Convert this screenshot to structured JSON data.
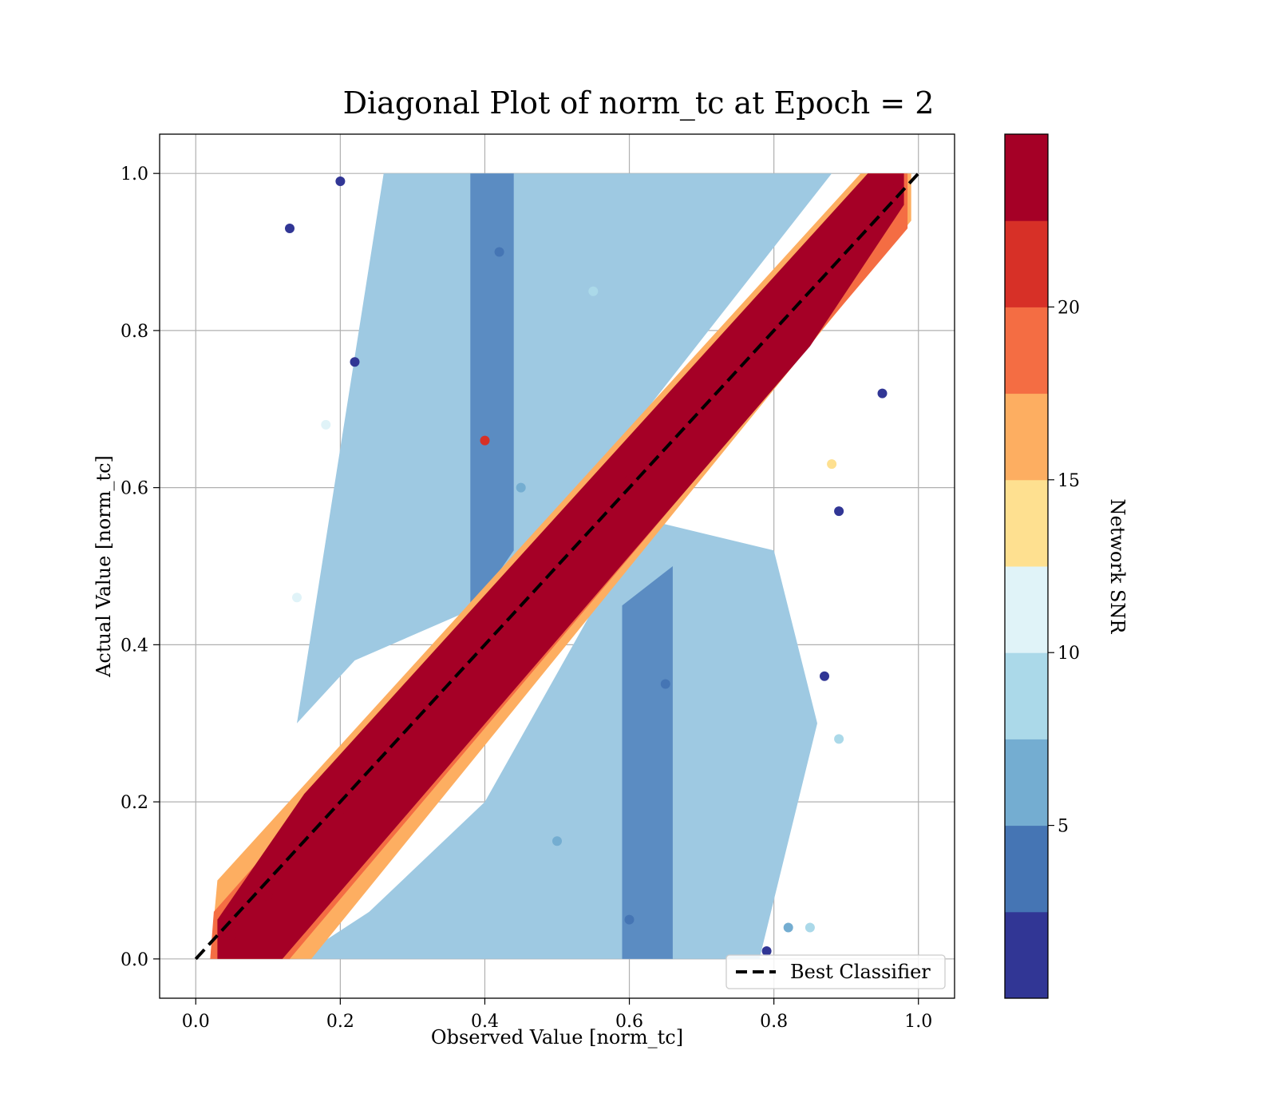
{
  "chart_data": {
    "type": "scatter",
    "title": "Diagonal Plot of norm_tc at Epoch = 2",
    "xlabel": "Observed Value [norm_tc]",
    "ylabel": "Actual Value [norm_tc]",
    "xlim": [
      -0.05,
      1.05
    ],
    "ylim": [
      -0.05,
      1.05
    ],
    "xticks": [
      "0.0",
      "0.2",
      "0.4",
      "0.6",
      "0.8",
      "1.0"
    ],
    "yticks": [
      "0.0",
      "0.2",
      "0.4",
      "0.6",
      "0.8",
      "1.0"
    ],
    "grid": true,
    "legend": {
      "placement": "lower-right",
      "entries": [
        "Best Classifier"
      ]
    },
    "reference_line": {
      "name": "Best Classifier",
      "style": "dashed",
      "color": "#000000",
      "points": [
        [
          0,
          0
        ],
        [
          1,
          1
        ]
      ]
    },
    "colorbar": {
      "label": "Network SNR",
      "range": [
        0,
        25
      ],
      "ticks": [
        "5",
        "10",
        "15",
        "20"
      ],
      "colors": [
        "#313695",
        "#4575b4",
        "#74add1",
        "#abd9e9",
        "#e0f3f8",
        "#fee090",
        "#fdae61",
        "#f46d43",
        "#d73027",
        "#a50026"
      ]
    },
    "series": [
      {
        "description": "points colored by Network SNR; high-SNR points lie along the diagonal, low-SNR points scatter away from it",
        "points": [
          {
            "x": 0.05,
            "y": 0.03,
            "snr": 24
          },
          {
            "x": 0.1,
            "y": 0.08,
            "snr": 24
          },
          {
            "x": 0.2,
            "y": 0.19,
            "snr": 24
          },
          {
            "x": 0.3,
            "y": 0.3,
            "snr": 24
          },
          {
            "x": 0.4,
            "y": 0.41,
            "snr": 24
          },
          {
            "x": 0.5,
            "y": 0.5,
            "snr": 24
          },
          {
            "x": 0.6,
            "y": 0.61,
            "snr": 24
          },
          {
            "x": 0.7,
            "y": 0.7,
            "snr": 24
          },
          {
            "x": 0.8,
            "y": 0.8,
            "snr": 24
          },
          {
            "x": 0.9,
            "y": 0.9,
            "snr": 24
          },
          {
            "x": 0.96,
            "y": 0.99,
            "snr": 24
          },
          {
            "x": 0.42,
            "y": 0.9,
            "snr": 4
          },
          {
            "x": 0.45,
            "y": 0.6,
            "snr": 6
          },
          {
            "x": 0.55,
            "y": 0.85,
            "snr": 9
          },
          {
            "x": 0.6,
            "y": 0.05,
            "snr": 4
          },
          {
            "x": 0.5,
            "y": 0.15,
            "snr": 7
          },
          {
            "x": 0.65,
            "y": 0.35,
            "snr": 3
          },
          {
            "x": 0.13,
            "y": 0.93,
            "snr": 2
          },
          {
            "x": 0.2,
            "y": 0.99,
            "snr": 1
          },
          {
            "x": 0.22,
            "y": 0.76,
            "snr": 1
          },
          {
            "x": 0.87,
            "y": 0.36,
            "snr": 1
          },
          {
            "x": 0.89,
            "y": 0.57,
            "snr": 1
          },
          {
            "x": 0.95,
            "y": 0.72,
            "snr": 1
          },
          {
            "x": 0.89,
            "y": 0.28,
            "snr": 8
          },
          {
            "x": 0.85,
            "y": 0.04,
            "snr": 8
          },
          {
            "x": 0.18,
            "y": 0.68,
            "snr": 12
          },
          {
            "x": 0.14,
            "y": 0.46,
            "snr": 11
          },
          {
            "x": 0.79,
            "y": 0.01,
            "snr": 1
          },
          {
            "x": 0.4,
            "y": 0.66,
            "snr": 22
          },
          {
            "x": 0.88,
            "y": 0.63,
            "snr": 14
          },
          {
            "x": 0.82,
            "y": 0.04,
            "snr": 6
          }
        ]
      }
    ]
  }
}
